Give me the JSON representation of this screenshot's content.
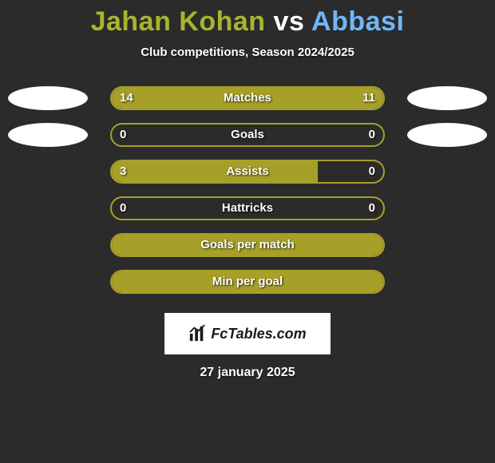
{
  "title": {
    "player1": "Jahan Kohan",
    "vs": "vs",
    "player2": "Abbasi",
    "player1_color": "#a6b62a",
    "vs_color": "#ffffff",
    "player2_color": "#6fb7f7",
    "fontsize": 34
  },
  "subtitle": "Club competitions, Season 2024/2025",
  "chart": {
    "bar_color": "#a6a028",
    "track_border_color": "#a6a028",
    "track_bg": "#2b2b2b",
    "text_color": "#ffffff",
    "badge_color": "#ffffff",
    "rows": [
      {
        "label": "Matches",
        "left_val": "14",
        "right_val": "11",
        "left_pct": 56,
        "right_pct": 44,
        "show_left_badge": true,
        "show_right_badge": true
      },
      {
        "label": "Goals",
        "left_val": "0",
        "right_val": "0",
        "left_pct": 0,
        "right_pct": 0,
        "show_left_badge": true,
        "show_right_badge": true
      },
      {
        "label": "Assists",
        "left_val": "3",
        "right_val": "0",
        "left_pct": 76,
        "right_pct": 0,
        "show_left_badge": false,
        "show_right_badge": false
      },
      {
        "label": "Hattricks",
        "left_val": "0",
        "right_val": "0",
        "left_pct": 0,
        "right_pct": 0,
        "show_left_badge": false,
        "show_right_badge": false
      },
      {
        "label": "Goals per match",
        "left_val": "",
        "right_val": "",
        "left_pct": 100,
        "right_pct": 0,
        "show_left_badge": false,
        "show_right_badge": false
      },
      {
        "label": "Min per goal",
        "left_val": "",
        "right_val": "",
        "left_pct": 100,
        "right_pct": 0,
        "show_left_badge": false,
        "show_right_badge": false
      }
    ]
  },
  "logo": {
    "text": "FcTables.com",
    "bg": "#ffffff",
    "text_color": "#1a1a1a"
  },
  "date": "27 january 2025",
  "background_color": "#2b2b2b"
}
